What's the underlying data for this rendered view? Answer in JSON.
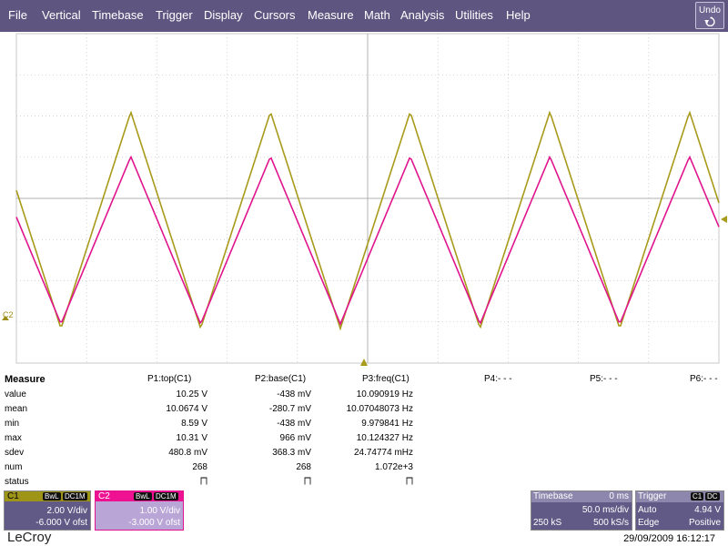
{
  "menu": {
    "items": [
      "File",
      "Vertical",
      "Timebase",
      "Trigger",
      "Display",
      "Cursors",
      "Measure",
      "Math",
      "Analysis",
      "Utilities",
      "Help"
    ],
    "undo_label": "Undo"
  },
  "colors": {
    "menubar": "#5e5680",
    "c1_trace": "#a89a1a",
    "c2_trace": "#e0148c",
    "grid": "#c8c8c8"
  },
  "waveform": {
    "c2_marker": "C2",
    "trigger_marker_color": "#a89a1a"
  },
  "measure": {
    "title": "Measure",
    "columns": [
      "P1:top(C1)",
      "P2:base(C1)",
      "P3:freq(C1)",
      "P4:- - -",
      "P5:- - -",
      "P6:- - -"
    ],
    "row_labels": [
      "value",
      "mean",
      "min",
      "max",
      "sdev",
      "num",
      "status"
    ],
    "rows": {
      "value": [
        "10.25 V",
        "-438 mV",
        "10.090919 Hz"
      ],
      "mean": [
        "10.0674 V",
        "-280.7 mV",
        "10.07048073 Hz"
      ],
      "min": [
        "8.59 V",
        "-438 mV",
        "9.979841 Hz"
      ],
      "max": [
        "10.31 V",
        "966 mV",
        "10.124327 Hz"
      ],
      "sdev": [
        "480.8 mV",
        "368.3 mV",
        "24.74774 mHz"
      ],
      "num": [
        "268",
        "268",
        "1.072e+3"
      ],
      "status": [
        "⨅",
        "⨅",
        "⨅"
      ]
    }
  },
  "channel1": {
    "name": "C1",
    "tags": [
      "BwL",
      "DC1M"
    ],
    "scale": "2.00 V/div",
    "offset": "-6.000 V ofst"
  },
  "channel2": {
    "name": "C2",
    "tags": [
      "BwL",
      "DC1M"
    ],
    "scale": "1.00 V/div",
    "offset": "-3.000 V ofst"
  },
  "timebase": {
    "title": "Timebase",
    "delay": "0 ms",
    "div": "50.0 ms/div",
    "samples": "250 kS",
    "rate": "500 kS/s"
  },
  "trigger": {
    "title": "Trigger",
    "tags": [
      "C1",
      "DC"
    ],
    "mode": "Auto",
    "level": "4.94 V",
    "type": "Edge",
    "slope": "Positive"
  },
  "footer": {
    "logo": "LeCroy",
    "datetime": "29/09/2009 16:12:17"
  }
}
